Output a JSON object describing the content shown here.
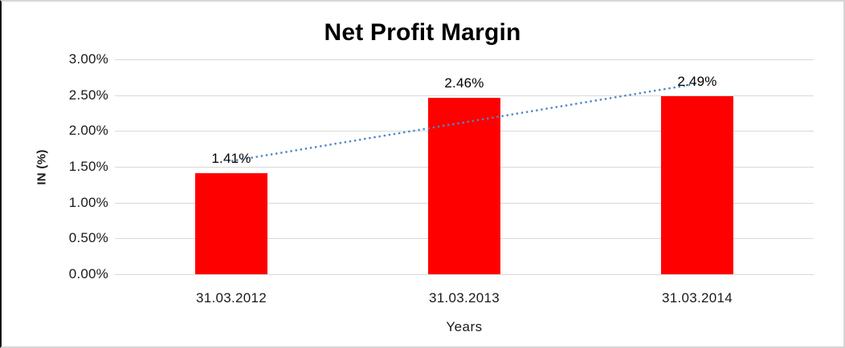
{
  "chart_data": {
    "type": "bar",
    "title": "Net Profit Margin",
    "xlabel": "Years",
    "ylabel": "IN (%)",
    "categories": [
      "31.03.2012",
      "31.03.2013",
      "31.03.2014"
    ],
    "values": [
      1.41,
      2.46,
      2.49
    ],
    "data_labels": [
      "1.41%",
      "2.46%",
      "2.49%"
    ],
    "y_ticks": [
      {
        "value": 0.0,
        "label": "0.00%"
      },
      {
        "value": 0.5,
        "label": "0.50%"
      },
      {
        "value": 1.0,
        "label": "1.00%"
      },
      {
        "value": 1.5,
        "label": "1.50%"
      },
      {
        "value": 2.0,
        "label": "2.00%"
      },
      {
        "value": 2.5,
        "label": "2.50%"
      },
      {
        "value": 3.0,
        "label": "3.00%"
      }
    ],
    "ylim": [
      0,
      3
    ],
    "grid": true,
    "legend": "none",
    "bar_color": "#ff0000",
    "gridline_color": "#d9d9d9",
    "trendline": {
      "type": "linear",
      "style": "dotted",
      "color": "#4e86c8",
      "start_value": 1.58,
      "end_value": 2.66
    }
  }
}
